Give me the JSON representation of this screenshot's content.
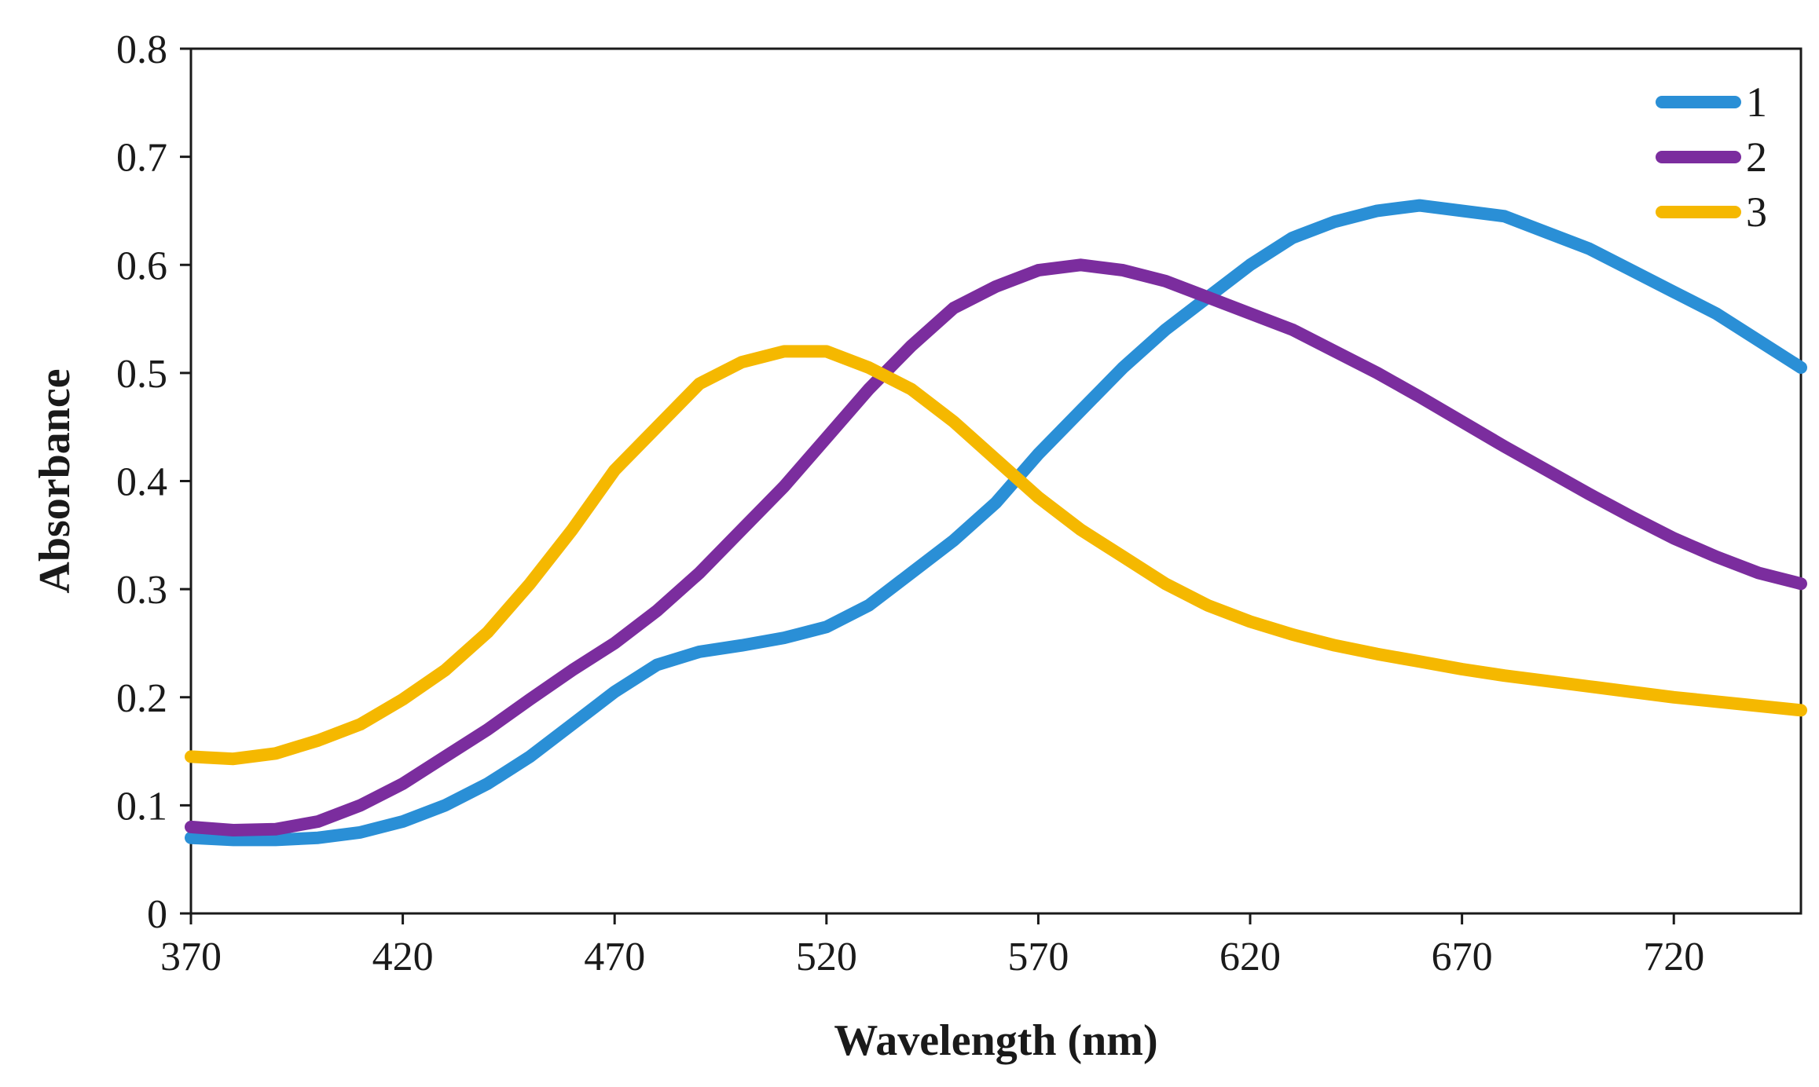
{
  "chart_data": {
    "type": "line",
    "title": "",
    "xlabel": "Wavelength (nm)",
    "ylabel": "Absorbance",
    "xlim": [
      370,
      750
    ],
    "ylim": [
      0,
      0.8
    ],
    "xticks": [
      370,
      420,
      470,
      520,
      570,
      620,
      670,
      720
    ],
    "xtick_labels": [
      "370",
      "420",
      "470",
      "520",
      "570",
      "620",
      "670",
      "720"
    ],
    "yticks": [
      0,
      0.1,
      0.2,
      0.3,
      0.4,
      0.5,
      0.6,
      0.7,
      0.8
    ],
    "ytick_labels": [
      "0",
      "0.1",
      "0.2",
      "0.3",
      "0.4",
      "0.5",
      "0.6",
      "0.7",
      "0.8"
    ],
    "grid": false,
    "legend_position": "top-right",
    "x": [
      370,
      380,
      390,
      400,
      410,
      420,
      430,
      440,
      450,
      460,
      470,
      480,
      490,
      500,
      510,
      520,
      530,
      540,
      550,
      560,
      570,
      580,
      590,
      600,
      610,
      620,
      630,
      640,
      650,
      660,
      670,
      680,
      690,
      700,
      710,
      720,
      730,
      740,
      750
    ],
    "series": [
      {
        "name": "1",
        "color": "#2a8fd6",
        "values": [
          0.07,
          0.068,
          0.068,
          0.07,
          0.075,
          0.085,
          0.1,
          0.12,
          0.145,
          0.175,
          0.205,
          0.23,
          0.242,
          0.248,
          0.255,
          0.265,
          0.285,
          0.315,
          0.345,
          0.38,
          0.425,
          0.465,
          0.505,
          0.54,
          0.57,
          0.6,
          0.625,
          0.64,
          0.65,
          0.655,
          0.65,
          0.645,
          0.63,
          0.615,
          0.595,
          0.575,
          0.555,
          0.53,
          0.505
        ]
      },
      {
        "name": "2",
        "color": "#7b2d9e",
        "values": [
          0.08,
          0.077,
          0.078,
          0.085,
          0.1,
          0.12,
          0.145,
          0.17,
          0.198,
          0.225,
          0.25,
          0.28,
          0.315,
          0.355,
          0.395,
          0.44,
          0.485,
          0.525,
          0.56,
          0.58,
          0.595,
          0.6,
          0.595,
          0.585,
          0.57,
          0.555,
          0.54,
          0.52,
          0.5,
          0.478,
          0.455,
          0.432,
          0.41,
          0.388,
          0.367,
          0.347,
          0.33,
          0.315,
          0.305
        ]
      },
      {
        "name": "3",
        "color": "#f5b800",
        "values": [
          0.145,
          0.143,
          0.148,
          0.16,
          0.175,
          0.198,
          0.225,
          0.26,
          0.305,
          0.355,
          0.41,
          0.45,
          0.49,
          0.51,
          0.52,
          0.52,
          0.505,
          0.485,
          0.455,
          0.42,
          0.385,
          0.355,
          0.33,
          0.305,
          0.285,
          0.27,
          0.258,
          0.248,
          0.24,
          0.233,
          0.226,
          0.22,
          0.215,
          0.21,
          0.205,
          0.2,
          0.196,
          0.192,
          0.188
        ]
      }
    ]
  }
}
